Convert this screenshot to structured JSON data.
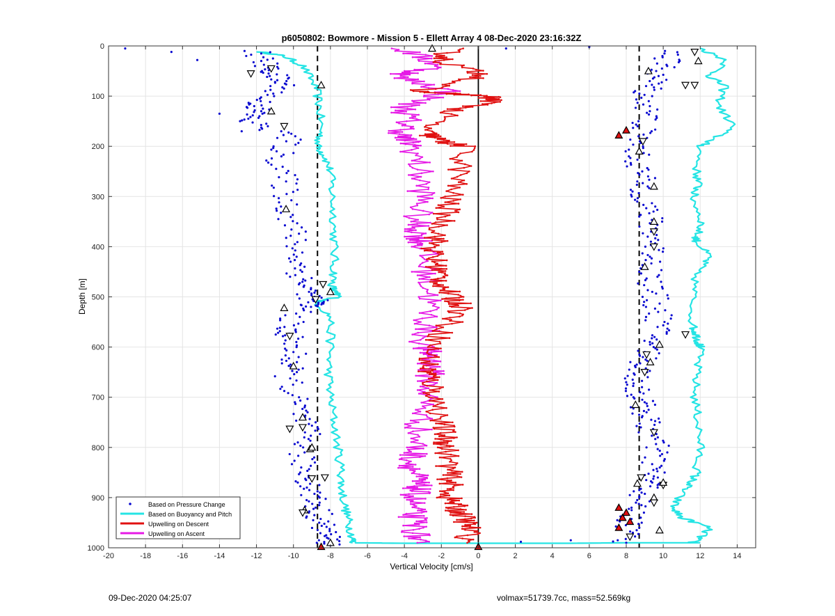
{
  "chart_data": {
    "type": "scatter",
    "title": "p6050802: Bowmore - Mission 5 - Ellett Array 4 08-Dec-2020 23:16:32Z",
    "xlabel": "Vertical Velocity [cm/s]",
    "ylabel": "Depth [m]",
    "xlim": [
      -20,
      15
    ],
    "ylim": [
      0,
      1000
    ],
    "y_reversed": true,
    "grid": true,
    "legend_position": "bottom-left",
    "x_ticks": [
      -20,
      -18,
      -16,
      -14,
      -12,
      -10,
      -8,
      -6,
      -4,
      -2,
      0,
      2,
      4,
      6,
      8,
      10,
      12,
      14
    ],
    "y_ticks": [
      0,
      100,
      200,
      300,
      400,
      500,
      600,
      700,
      800,
      900,
      1000
    ],
    "reference_lines": [
      {
        "style": "dashed",
        "x": -8.7,
        "color": "#000000"
      },
      {
        "style": "dashed",
        "x": 8.7,
        "color": "#000000"
      },
      {
        "style": "solid",
        "x": 0,
        "color": "#000000"
      }
    ],
    "series": [
      {
        "name": "Based on Pressure Change",
        "marker": "dot",
        "color": "#0a0ad0",
        "segments": [
          {
            "x": [
              -12.0,
              -11.5,
              -11.0,
              -10.5,
              -11.8,
              -12.0,
              -12.5,
              -10.2,
              -10.8,
              -10.5,
              -10.3,
              -10.0,
              -9.8,
              -9.6,
              -9.2,
              -8.8,
              -9.3,
              -10.5,
              -10.2,
              -10.0,
              -10.3,
              -10.0,
              -9.6,
              -9.2,
              -9.6,
              -9.2,
              -9.0,
              -8.7,
              -8.5,
              -8.2,
              -8.0
            ],
            "y": [
              10,
              40,
              60,
              80,
              110,
              130,
              150,
              180,
              220,
              270,
              320,
              370,
              420,
              460,
              490,
              510,
              520,
              560,
              580,
              620,
              650,
              700,
              740,
              780,
              820,
              860,
              890,
              920,
              950,
              975,
              995
            ]
          },
          {
            "x": [
              10.5,
              10.0,
              9.5,
              9.0,
              9.2,
              8.7,
              8.5,
              8.8,
              9.0,
              9.2,
              9.5,
              9.5,
              9.3,
              9.5,
              9.8,
              9.6,
              9.2,
              8.8,
              8.5,
              8.7,
              9.0,
              9.2,
              9.6,
              9.5,
              9.3,
              8.8,
              8.3,
              8.1,
              8.0
            ],
            "y": [
              10,
              40,
              70,
              100,
              140,
              180,
              220,
              260,
              300,
              340,
              380,
              420,
              460,
              500,
              540,
              580,
              610,
              640,
              670,
              700,
              730,
              760,
              800,
              840,
              870,
              900,
              930,
              960,
              990
            ]
          }
        ]
      },
      {
        "name": "Based on Buoyancy and Pitch",
        "marker": "line",
        "color": "#25e4e4",
        "segments": [
          {
            "x": [
              -11.8,
              -10.5,
              -9.5,
              -8.8,
              -8.6,
              -8.5,
              -8.7,
              -8.3,
              -8.0,
              -7.9,
              -7.8,
              -7.8,
              -7.8,
              -7.9,
              -7.8,
              -7.5,
              -8.8,
              -8.0,
              -8.0,
              -8.1,
              -8.0,
              -7.8,
              -7.6,
              -7.4,
              -7.4,
              -7.2,
              -7.0,
              -6.8,
              -6.8
            ],
            "y": [
              12,
              20,
              40,
              80,
              120,
              170,
              200,
              220,
              250,
              300,
              350,
              400,
              450,
              480,
              490,
              500,
              510,
              540,
              600,
              650,
              700,
              750,
              800,
              850,
              880,
              920,
              950,
              980,
              990
            ]
          },
          {
            "x": [
              12.0,
              13.5,
              12.5,
              13.3,
              13.0,
              13.8,
              12.5,
              12.0,
              11.8,
              11.9,
              11.6,
              12.1,
              11.8,
              11.8,
              12.5,
              11.8,
              11.6,
              11.6,
              11.8,
              11.9,
              12.0,
              11.8,
              11.7,
              11.9,
              12.0,
              11.8,
              11.5,
              11.0,
              10.5,
              11.0,
              12.5,
              12.0,
              11.5
            ],
            "y": [
              5,
              30,
              60,
              80,
              120,
              160,
              190,
              200,
              250,
              280,
              300,
              350,
              380,
              390,
              420,
              450,
              500,
              560,
              575,
              590,
              600,
              650,
              700,
              750,
              800,
              850,
              870,
              890,
              920,
              940,
              960,
              980,
              990
            ]
          },
          {
            "x": [
              -6.8,
              -4.0,
              -2.0,
              0.0,
              2.0,
              5.0,
              8.0,
              10.0,
              12.0
            ],
            "y": [
              990,
              991,
              991,
              991,
              991,
              991,
              990,
              990,
              990
            ]
          }
        ]
      },
      {
        "name": "Upwelling on Descent",
        "marker": "line",
        "color": "#e01010",
        "x": [
          -1.5,
          -2.0,
          0.5,
          -3.5,
          0.5,
          0.8,
          -1.5,
          -3.0,
          -2.0,
          -0.8,
          -1.0,
          -1.5,
          -1.8,
          -2.2,
          -2.5,
          -2.2,
          -2.0,
          -1.5,
          -0.8,
          -1.5,
          -2.5,
          -2.8,
          -2.6,
          -2.3,
          -2.0,
          -1.8,
          -1.7,
          -1.6,
          -1.5,
          -1.6,
          -1.2,
          -0.8,
          -0.5,
          -0.6
        ],
        "y": [
          5,
          30,
          60,
          90,
          100,
          110,
          130,
          170,
          190,
          200,
          250,
          300,
          340,
          380,
          410,
          440,
          470,
          500,
          520,
          550,
          600,
          640,
          660,
          700,
          750,
          780,
          800,
          840,
          870,
          900,
          920,
          940,
          960,
          990
        ]
      },
      {
        "name": "Upwelling on Ascent",
        "marker": "line",
        "color": "#e619e6",
        "x": [
          -4.2,
          -2.0,
          -4.5,
          -1.5,
          -4.0,
          -3.8,
          -4.2,
          -3.5,
          -3.2,
          -3.0,
          -3.4,
          -3.2,
          -3.0,
          -2.8,
          -2.6,
          -2.8,
          -3.0,
          -2.5,
          -2.6,
          -2.8,
          -3.2,
          -3.4,
          -3.6,
          -3.4,
          -3.3,
          -3.5,
          -3.6,
          -3.4,
          -3.3
        ],
        "y": [
          5,
          40,
          60,
          90,
          120,
          150,
          180,
          200,
          250,
          300,
          350,
          380,
          400,
          450,
          500,
          550,
          600,
          620,
          650,
          700,
          750,
          800,
          830,
          860,
          880,
          900,
          930,
          960,
          990
        ]
      }
    ],
    "markers": {
      "descent_triangles": {
        "color": "#e01010",
        "x": [
          8.0,
          7.6,
          7.8,
          8.2,
          8.0,
          7.6,
          7.6,
          -8.5,
          0.0
        ],
        "y": [
          168,
          178,
          940,
          948,
          930,
          920,
          960,
          998,
          998
        ]
      },
      "ascent_triangles": {
        "color": "#ffffff",
        "x": [
          -2.5,
          -11.2,
          -8.5,
          -12.3,
          -11.2,
          -10.5,
          -10.4,
          -8.4,
          -8.0,
          -8.8,
          -10.5,
          -10.2,
          -10.0,
          -10.2,
          -9.1,
          -9.0,
          -9.4,
          -9.5,
          -9.5,
          -9.5,
          -9.0,
          -8.3,
          -8.0,
          11.7,
          11.9,
          11.7,
          9.2,
          11.2,
          8.7,
          8.9,
          9.5,
          9.5,
          9.0,
          9.5,
          9.5,
          11.2,
          9.8,
          9.1,
          9.3,
          9.0,
          8.5,
          9.5,
          9.5,
          9.5,
          9.8,
          8.2,
          8.6,
          10.0,
          10.0,
          8.8
        ],
        "y": [
          5,
          45,
          78,
          55,
          130,
          160,
          325,
          475,
          490,
          505,
          522,
          578,
          638,
          763,
          803,
          862,
          925,
          930,
          740,
          760,
          800,
          860,
          990,
          12,
          30,
          78,
          50,
          78,
          210,
          190,
          280,
          370,
          440,
          400,
          350,
          575,
          595,
          615,
          630,
          650,
          715,
          770,
          900,
          910,
          965,
          978,
          872,
          875,
          870,
          860
        ]
      }
    },
    "legend": [
      {
        "label": "Based on Pressure Change",
        "style": "dot",
        "color": "#0a0ad0"
      },
      {
        "label": "Based on Buoyancy and Pitch",
        "style": "line",
        "color": "#25e4e4"
      },
      {
        "label": "Upwelling on Descent",
        "style": "line",
        "color": "#e01010"
      },
      {
        "label": "Upwelling on Ascent",
        "style": "line",
        "color": "#e619e6"
      }
    ]
  },
  "footer": {
    "left_text": "09-Dec-2020 04:25:07",
    "right_text": "volmax=51739.7cc, mass=52.569kg"
  }
}
